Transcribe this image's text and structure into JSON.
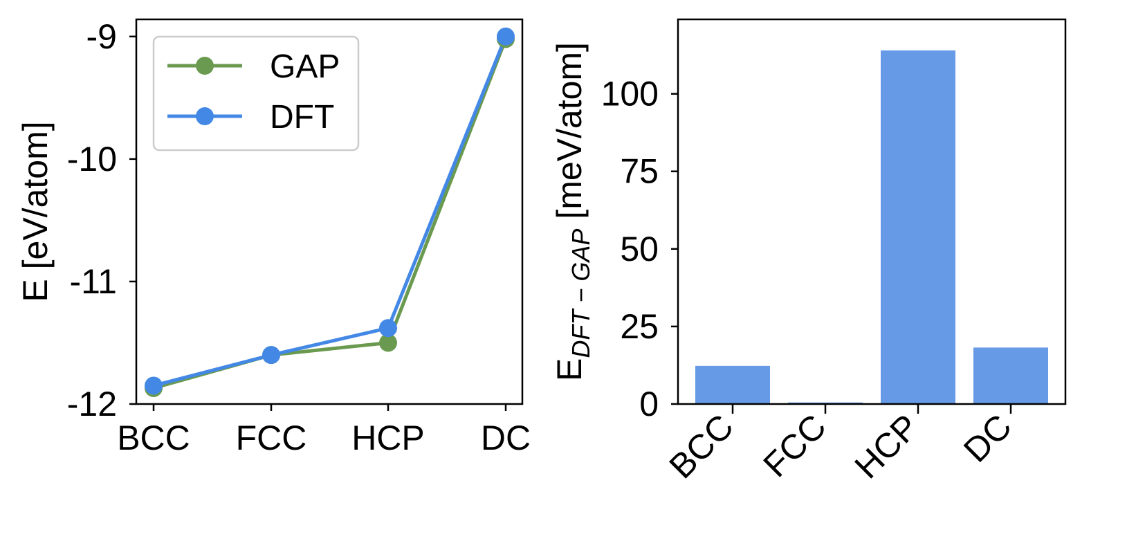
{
  "colors": {
    "gap": "#6a9a4f",
    "dft": "#4488e6",
    "bar": "#6699e6",
    "axis": "#000000",
    "legend_border": "#cccccc"
  },
  "chart_data": [
    {
      "type": "line",
      "categories": [
        "BCC",
        "FCC",
        "HCP",
        "DC"
      ],
      "series": [
        {
          "name": "GAP",
          "values": [
            -11.87,
            -11.6,
            -11.5,
            -9.02
          ]
        },
        {
          "name": "DFT",
          "values": [
            -11.85,
            -11.6,
            -11.38,
            -9.0
          ]
        }
      ],
      "ylabel": "E [eV/atom]",
      "ylim": [
        -12.0,
        -8.86
      ],
      "yticks": [
        -9,
        -10,
        -11,
        -12
      ],
      "ytick_labels": [
        "-9",
        "-10",
        "-11",
        "-12"
      ],
      "legend": {
        "position": "top-left",
        "entries": [
          "GAP",
          "DFT"
        ]
      }
    },
    {
      "type": "bar",
      "categories": [
        "BCC",
        "FCC",
        "HCP",
        "DC"
      ],
      "values": [
        12.3,
        0.5,
        114.0,
        18.2
      ],
      "ylabel_main": "E",
      "ylabel_sub": "DFT − GAP",
      "ylabel_unit": "[meV/atom]",
      "ylim": [
        0,
        124
      ],
      "yticks": [
        0,
        25,
        50,
        75,
        100
      ],
      "ytick_labels": [
        "0",
        "25",
        "50",
        "75",
        "100"
      ],
      "xtick_rotation": -45
    }
  ]
}
